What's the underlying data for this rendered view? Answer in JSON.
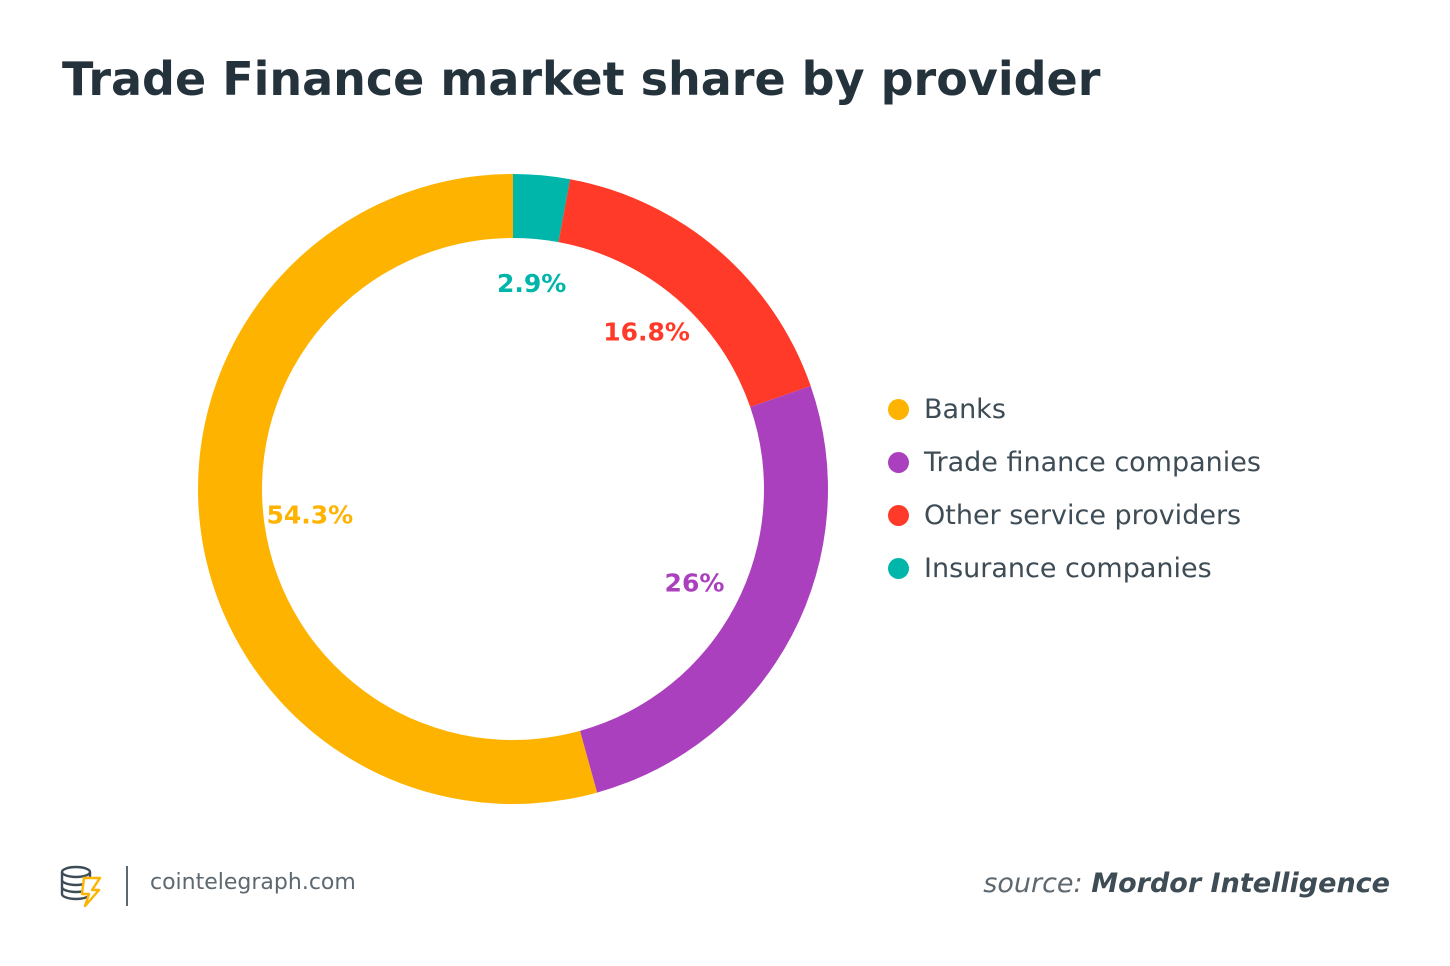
{
  "chart_data": {
    "type": "pie",
    "title": "Trade Finance market share by provider",
    "categories": [
      "Banks",
      "Trade finance companies",
      "Other service providers",
      "Insurance companies"
    ],
    "values": [
      54.3,
      26,
      16.8,
      2.9
    ],
    "data_labels": [
      "54.3%",
      "26%",
      "16.8%",
      "2.9%"
    ],
    "colors": [
      "#fdb300",
      "#aa40bd",
      "#ff3a29",
      "#00b5a9"
    ],
    "legend_position": "right",
    "donut": true
  },
  "footer": {
    "site": "cointelegraph.com",
    "source_prefix": "source:",
    "source_name": "Mordor Intelligence"
  },
  "icons": {
    "logo": "cointelegraph-logo-icon"
  }
}
